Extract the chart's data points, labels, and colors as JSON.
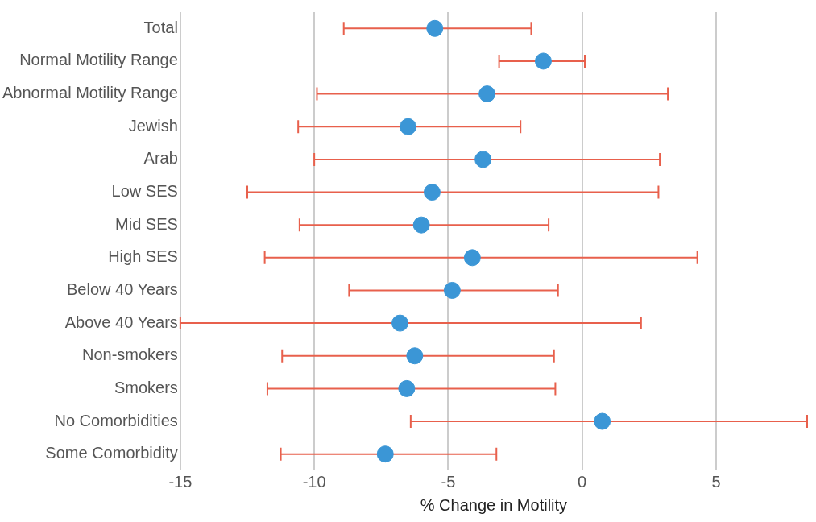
{
  "chart_data": {
    "type": "scatter",
    "orientation": "horizontal",
    "xlabel": "% Change in Motility",
    "categories": [
      "Total",
      "Normal Motility Range",
      "Abnormal Motility Range",
      "Jewish",
      "Arab",
      "Low SES",
      "Mid SES",
      "High SES",
      "Below 40 Years",
      "Above 40 Years",
      "Non-smokers",
      "Smokers",
      "No Comorbidities",
      "Some Comorbidity"
    ],
    "values": [
      -5.5,
      -1.45,
      -3.55,
      -6.5,
      -3.7,
      -5.6,
      -6.0,
      -4.1,
      -4.85,
      -6.8,
      -6.25,
      -6.55,
      0.75,
      -7.35
    ],
    "errors": [
      [
        -8.9,
        -1.9
      ],
      [
        -3.1,
        0.1
      ],
      [
        -9.9,
        3.2
      ],
      [
        -10.6,
        -2.3
      ],
      [
        -10.0,
        2.9
      ],
      [
        -12.5,
        2.85
      ],
      [
        -10.55,
        -1.25
      ],
      [
        -11.85,
        4.3
      ],
      [
        -8.7,
        -0.9
      ],
      [
        -15.0,
        2.2
      ],
      [
        -11.2,
        -1.05
      ],
      [
        -11.75,
        -1.0
      ],
      [
        -6.4,
        8.4
      ],
      [
        -11.25,
        -3.2
      ]
    ],
    "color": "#3b96d6",
    "xlim": [
      -15,
      8.4
    ],
    "xticks": [
      -15,
      -10,
      -5,
      0,
      5
    ],
    "grid": "x",
    "legend": false,
    "marker": "circle"
  }
}
